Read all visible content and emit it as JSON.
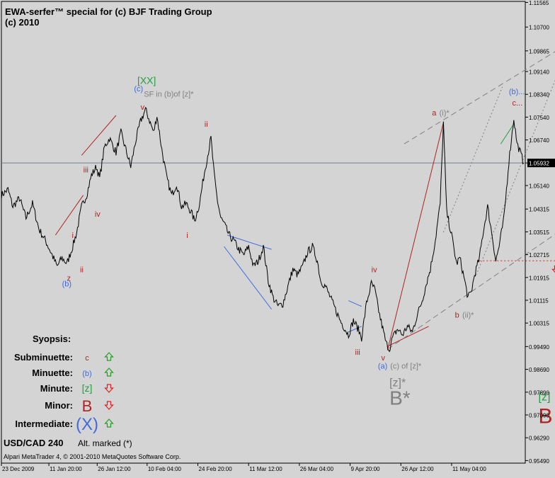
{
  "header": {
    "title_line1": "EWA-serfer™ special for (c) BJF Trading Group",
    "title_line2": "(c) 2010"
  },
  "footer": {
    "symbol": "USD/CAD 240",
    "alt_marked": "Alt. marked (*)",
    "copyright": "Alpari MetaTrader 4, © 2001-2010 MetaQuotes Software Corp."
  },
  "synopsis": {
    "title": "Syopsis:",
    "rows": [
      {
        "degree": "Subminuette:",
        "label": "c",
        "direction": "up",
        "color": "#b22222",
        "label_size": 11
      },
      {
        "degree": "Minuette:",
        "label": "(b)",
        "direction": "up",
        "color": "#4169e1",
        "label_size": 11
      },
      {
        "degree": "Minute:",
        "label": "[z]",
        "direction": "down",
        "color": "#20a040",
        "label_size": 14
      },
      {
        "degree": "Minor:",
        "label": "B",
        "direction": "down",
        "color": "#b22222",
        "label_size": 22
      },
      {
        "degree": "Intermediate:",
        "label": "(X)",
        "direction": "up",
        "color": "#4169e1",
        "label_size": 24
      }
    ]
  },
  "colors": {
    "background": "#d4d4d4",
    "price": "#000000",
    "grid_frame": "#000000",
    "current_price_line": "#708090",
    "current_price_bg": "#000000",
    "arrow_up": "#20a020",
    "arrow_down": "#e02020",
    "wave_red": "#b22222",
    "wave_blue": "#4169e1",
    "wave_green": "#20a040",
    "wave_gray": "#808080"
  },
  "chart_data": {
    "type": "line",
    "symbol": "USD/CAD",
    "timeframe": "240",
    "ylim": [
      0.954,
      1.116
    ],
    "y_ticks": [
      "1.11565",
      "1.10700",
      "1.09865",
      "1.09140",
      "1.08340",
      "1.07540",
      "1.06740",
      "1.05932",
      "1.05140",
      "1.04315",
      "1.03515",
      "1.02715",
      "1.01915",
      "1.01115",
      "1.00315",
      "0.99490",
      "0.98690",
      "0.97890",
      "0.97090",
      "0.96290",
      "0.95490"
    ],
    "y_tick_values": [
      1.11565,
      1.107,
      1.09865,
      1.0914,
      1.0834,
      1.0754,
      1.0674,
      1.05932,
      1.0514,
      1.04315,
      1.03515,
      1.02715,
      1.01915,
      1.01115,
      1.00315,
      0.9949,
      0.9869,
      0.9789,
      0.9709,
      0.9629,
      0.9549
    ],
    "current_price": 1.05932,
    "x_ticks": [
      "23 Dec 2009",
      "11 Jan 20:00",
      "26 Jan 12:00",
      "10 Feb 04:00",
      "24 Feb 20:00",
      "11 Mar 12:00",
      "26 Mar 04:00",
      "9 Apr 20:00",
      "26 Apr 12:00",
      "11 May 04:00"
    ],
    "x_tick_index": [
      0,
      58,
      117,
      178,
      240,
      302,
      364,
      426,
      488,
      550
    ],
    "bar_count": 640,
    "price_path": [
      [
        0,
        1.048
      ],
      [
        8,
        1.05
      ],
      [
        14,
        1.044
      ],
      [
        22,
        1.047
      ],
      [
        30,
        1.04
      ],
      [
        38,
        1.045
      ],
      [
        46,
        1.036
      ],
      [
        54,
        1.032
      ],
      [
        62,
        1.027
      ],
      [
        68,
        1.023
      ],
      [
        74,
        1.026
      ],
      [
        80,
        1.024
      ],
      [
        86,
        1.029
      ],
      [
        92,
        1.035
      ],
      [
        98,
        1.044
      ],
      [
        104,
        1.048
      ],
      [
        110,
        1.055
      ],
      [
        116,
        1.058
      ],
      [
        120,
        1.054
      ],
      [
        126,
        1.065
      ],
      [
        132,
        1.068
      ],
      [
        140,
        1.063
      ],
      [
        146,
        1.07
      ],
      [
        152,
        1.064
      ],
      [
        158,
        1.058
      ],
      [
        164,
        1.067
      ],
      [
        170,
        1.074
      ],
      [
        176,
        1.078
      ],
      [
        180,
        1.075
      ],
      [
        186,
        1.07
      ],
      [
        190,
        1.076
      ],
      [
        196,
        1.064
      ],
      [
        202,
        1.054
      ],
      [
        208,
        1.048
      ],
      [
        214,
        1.052
      ],
      [
        220,
        1.044
      ],
      [
        226,
        1.045
      ],
      [
        232,
        1.042
      ],
      [
        236,
        1.039
      ],
      [
        242,
        1.045
      ],
      [
        248,
        1.056
      ],
      [
        252,
        1.062
      ],
      [
        256,
        1.068
      ],
      [
        260,
        1.055
      ],
      [
        264,
        1.046
      ],
      [
        268,
        1.04
      ],
      [
        272,
        1.038
      ],
      [
        278,
        1.034
      ],
      [
        284,
        1.032
      ],
      [
        290,
        1.029
      ],
      [
        296,
        1.027
      ],
      [
        302,
        1.03
      ],
      [
        308,
        1.023
      ],
      [
        314,
        1.025
      ],
      [
        320,
        1.03
      ],
      [
        326,
        1.018
      ],
      [
        332,
        1.012
      ],
      [
        338,
        1.009
      ],
      [
        344,
        1.01
      ],
      [
        350,
        1.016
      ],
      [
        356,
        1.022
      ],
      [
        362,
        1.02
      ],
      [
        368,
        1.023
      ],
      [
        374,
        1.028
      ],
      [
        380,
        1.03
      ],
      [
        386,
        1.025
      ],
      [
        390,
        1.018
      ],
      [
        396,
        1.016
      ],
      [
        402,
        1.012
      ],
      [
        408,
        1.008
      ],
      [
        414,
        1.004
      ],
      [
        420,
        1.001
      ],
      [
        424,
        0.999
      ],
      [
        430,
        1.004
      ],
      [
        436,
        1.001
      ],
      [
        440,
        0.998
      ],
      [
        446,
        1.01
      ],
      [
        452,
        1.017
      ],
      [
        456,
        1.015
      ],
      [
        462,
        1.006
      ],
      [
        466,
        1.001
      ],
      [
        470,
        0.996
      ],
      [
        474,
        0.994
      ],
      [
        478,
        0.998
      ],
      [
        484,
        1.001
      ],
      [
        490,
        0.999
      ],
      [
        496,
        1.002
      ],
      [
        502,
        1.0
      ],
      [
        508,
        1.006
      ],
      [
        514,
        1.011
      ],
      [
        520,
        1.018
      ],
      [
        524,
        1.022
      ],
      [
        530,
        1.032
      ],
      [
        536,
        1.045
      ],
      [
        540,
        1.0735
      ],
      [
        544,
        1.042
      ],
      [
        550,
        1.034
      ],
      [
        556,
        1.024
      ],
      [
        560,
        1.026
      ],
      [
        566,
        1.018
      ],
      [
        570,
        1.012
      ],
      [
        574,
        1.014
      ],
      [
        578,
        1.02
      ],
      [
        584,
        1.026
      ],
      [
        588,
        1.034
      ],
      [
        594,
        1.044
      ],
      [
        600,
        1.033
      ],
      [
        604,
        1.025
      ],
      [
        608,
        1.03
      ],
      [
        614,
        1.04
      ],
      [
        620,
        1.06
      ],
      [
        626,
        1.075
      ],
      [
        630,
        1.066
      ],
      [
        634,
        1.063
      ],
      [
        638,
        1.0593
      ]
    ],
    "trend_lines": [
      {
        "color": "#b22222",
        "style": "solid",
        "from": [
          66,
          1.034
        ],
        "to": [
          100,
          1.048
        ]
      },
      {
        "color": "#b22222",
        "style": "solid",
        "from": [
          98,
          1.062
        ],
        "to": [
          140,
          1.076
        ]
      },
      {
        "color": "#b22222",
        "style": "solid",
        "from": [
          472,
          0.994
        ],
        "to": [
          540,
          1.0735
        ]
      },
      {
        "color": "#b22222",
        "style": "solid",
        "from": [
          472,
          0.995
        ],
        "to": [
          522,
          1.002
        ]
      },
      {
        "color": "#4169e1",
        "style": "solid",
        "from": [
          276,
          1.034
        ],
        "to": [
          330,
          1.029
        ]
      },
      {
        "color": "#4169e1",
        "style": "solid",
        "from": [
          272,
          1.03
        ],
        "to": [
          330,
          1.008
        ]
      },
      {
        "color": "#4169e1",
        "style": "solid",
        "from": [
          424,
          1.011
        ],
        "to": [
          440,
          1.009
        ]
      },
      {
        "color": "#4169e1",
        "style": "solid",
        "from": [
          424,
          1.0
        ],
        "to": [
          440,
          1.002
        ]
      },
      {
        "color": "#20a040",
        "style": "solid",
        "from": [
          610,
          1.066
        ],
        "to": [
          626,
          1.073
        ]
      },
      {
        "color": "#808080",
        "style": "dashed",
        "from": [
          492,
          1.066
        ],
        "to": [
          680,
          1.099
        ]
      },
      {
        "color": "#808080",
        "style": "dashed",
        "from": [
          472,
          0.994
        ],
        "to": [
          680,
          1.035
        ]
      },
      {
        "color": "#808080",
        "style": "dotted",
        "from": [
          540,
          1.035
        ],
        "to": [
          612,
          1.086
        ]
      },
      {
        "color": "#808080",
        "style": "dotted",
        "from": [
          580,
          1.02
        ],
        "to": [
          686,
          1.095
        ]
      },
      {
        "color": "#e02020",
        "style": "dotted",
        "from": [
          584,
          1.025
        ],
        "to": [
          680,
          1.025
        ]
      }
    ],
    "wave_labels": [
      {
        "text": "[XX]",
        "color": "#20a040",
        "bar": 166,
        "price": 1.087,
        "size": 14
      },
      {
        "text": "(c)",
        "color": "#4169e1",
        "bar": 162,
        "price": 1.0845,
        "size": 11
      },
      {
        "text": "SF in (b)of [z]*",
        "color": "#808080",
        "bar": 174,
        "price": 1.0826,
        "size": 11
      },
      {
        "text": "v",
        "color": "#b22222",
        "bar": 170,
        "price": 1.078,
        "size": 11
      },
      {
        "text": "iii",
        "color": "#b22222",
        "bar": 100,
        "price": 1.056,
        "size": 11
      },
      {
        "text": "iv",
        "color": "#b22222",
        "bar": 114,
        "price": 1.0405,
        "size": 11
      },
      {
        "text": "i",
        "color": "#b22222",
        "bar": 86,
        "price": 1.033,
        "size": 11
      },
      {
        "text": "ii",
        "color": "#b22222",
        "bar": 96,
        "price": 1.021,
        "size": 11
      },
      {
        "text": "z",
        "color": "#b22222",
        "bar": 80,
        "price": 1.018,
        "size": 11
      },
      {
        "text": "(b)",
        "color": "#4169e1",
        "bar": 74,
        "price": 1.016,
        "size": 11
      },
      {
        "text": "ii",
        "color": "#b22222",
        "bar": 248,
        "price": 1.072,
        "size": 11
      },
      {
        "text": "i",
        "color": "#b22222",
        "bar": 226,
        "price": 1.033,
        "size": 11
      },
      {
        "text": "iv",
        "color": "#b22222",
        "bar": 452,
        "price": 1.021,
        "size": 11
      },
      {
        "text": "iii",
        "color": "#b22222",
        "bar": 432,
        "price": 0.992,
        "size": 11
      },
      {
        "text": "v",
        "color": "#b22222",
        "bar": 464,
        "price": 0.99,
        "size": 11
      },
      {
        "text": "(a)",
        "color": "#4169e1",
        "bar": 460,
        "price": 0.9872,
        "size": 11
      },
      {
        "text": "(c) of [z]*",
        "color": "#808080",
        "bar": 475,
        "price": 0.9872,
        "size": 11
      },
      {
        "text": "[z]*",
        "color": "#808080",
        "bar": 474,
        "price": 0.981,
        "size": 16
      },
      {
        "text": "B*",
        "color": "#808080",
        "bar": 474,
        "price": 0.9745,
        "size": 28
      },
      {
        "text": "a",
        "color": "#b22222",
        "bar": 526,
        "price": 1.076,
        "size": 11
      },
      {
        "text": "(i)*",
        "color": "#808080",
        "bar": 535,
        "price": 1.076,
        "size": 11
      },
      {
        "text": "b",
        "color": "#b22222",
        "bar": 554,
        "price": 1.005,
        "size": 11
      },
      {
        "text": "(ii)*",
        "color": "#808080",
        "bar": 563,
        "price": 1.005,
        "size": 11
      },
      {
        "text": "(b)...",
        "color": "#4169e1",
        "bar": 620,
        "price": 1.0835,
        "size": 11
      },
      {
        "text": "c...",
        "color": "#b22222",
        "bar": 624,
        "price": 1.0795,
        "size": 11
      },
      {
        "text": "[z]",
        "color": "#20a040",
        "bar": 656,
        "price": 0.976,
        "size": 16
      },
      {
        "text": "B",
        "color": "#b22222",
        "bar": 656,
        "price": 0.968,
        "size": 30
      }
    ],
    "signal_arrows": [
      {
        "direction": "down",
        "bar": 678,
        "price": 1.022
      }
    ]
  }
}
